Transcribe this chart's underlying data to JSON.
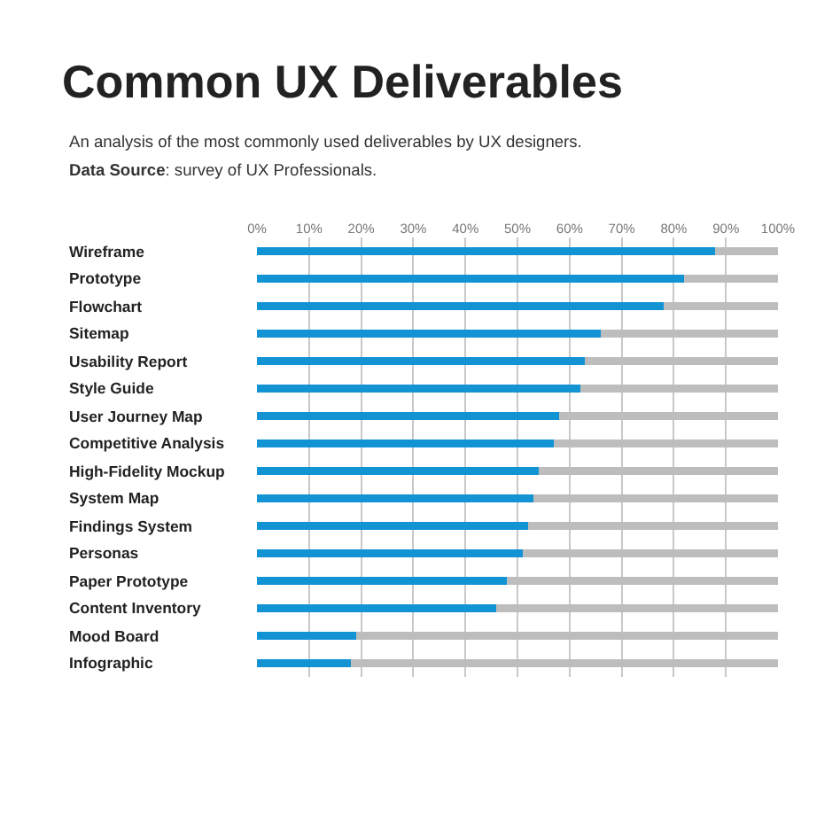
{
  "chart_data": {
    "type": "bar",
    "orientation": "horizontal",
    "stacked": true,
    "title": "Common UX Deliverables",
    "subtitle": "An analysis of the most commonly used deliverables by UX designers.",
    "annotations": [
      "Data Source: survey of UX Professionals."
    ],
    "categories": [
      "Wireframe",
      "Prototype",
      "Flowchart",
      "Sitemap",
      "Usability Report",
      "Style Guide",
      "User Journey Map",
      "Competitive Analysis",
      "High-Fidelity Mockup",
      "System Map",
      "Findings System",
      "Personas",
      "Paper Prototype",
      "Content Inventory",
      "Mood Board",
      "Infographic"
    ],
    "series": [
      {
        "color": "#1193d4",
        "values": [
          88,
          82,
          78,
          66,
          63,
          62,
          58,
          57,
          54,
          53,
          52,
          51,
          48,
          46,
          19,
          18
        ]
      },
      {
        "color": "#bdbdbd",
        "values": [
          12,
          18,
          22,
          34,
          37,
          38,
          42,
          43,
          46,
          47,
          48,
          49,
          52,
          54,
          81,
          82
        ]
      }
    ],
    "xlim": [
      0,
      100
    ],
    "xticks": [
      {
        "value": 0,
        "label": "0%"
      },
      {
        "value": 10,
        "label": "10%"
      },
      {
        "value": 20,
        "label": "20%"
      },
      {
        "value": 30,
        "label": "30%"
      },
      {
        "value": 40,
        "label": "40%"
      },
      {
        "value": 50,
        "label": "50%"
      },
      {
        "value": 60,
        "label": "60%"
      },
      {
        "value": 70,
        "label": "70%"
      },
      {
        "value": 80,
        "label": "80%"
      },
      {
        "value": 90,
        "label": "90%"
      },
      {
        "value": 100,
        "label": "100%"
      }
    ],
    "grid": "x"
  }
}
